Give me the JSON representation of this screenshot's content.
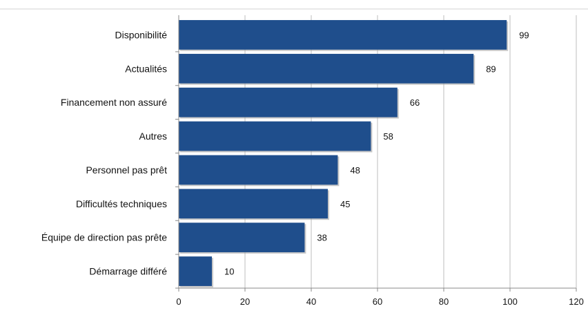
{
  "chart_data": {
    "type": "bar",
    "orientation": "horizontal",
    "categories": [
      "Disponibilité",
      "Actualités",
      "Financement non assuré",
      "Autres",
      "Personnel pas prêt",
      "Difficultés techniques",
      "Équipe de direction pas prête",
      "Démarrage différé"
    ],
    "values": [
      99,
      89,
      66,
      58,
      48,
      45,
      38,
      10
    ],
    "data_labels": [
      "99",
      "89",
      "66",
      "58",
      "48",
      "45",
      "38",
      "10"
    ],
    "xlim": [
      0,
      120
    ],
    "x_ticks": [
      0,
      20,
      40,
      60,
      80,
      100,
      120
    ],
    "x_tick_labels": [
      "0",
      "20",
      "40",
      "60",
      "80",
      "100",
      "120"
    ],
    "grid": true,
    "colors": {
      "bar": "#1F4E8C",
      "bar_shadow": "#9a9a9a",
      "grid": "#bdbdbd",
      "axis": "#888888",
      "top_rule": "#d0d0d0"
    }
  }
}
